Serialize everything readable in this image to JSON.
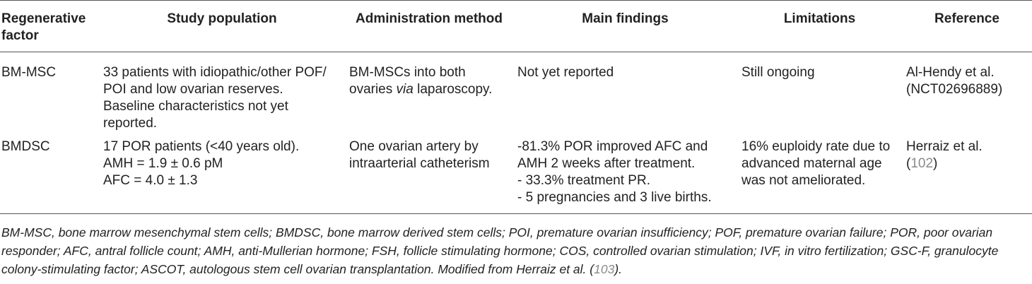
{
  "headers": {
    "factor": "Regenerative factor",
    "population": "Study population",
    "method": "Administration method",
    "findings": "Main findings",
    "limitations": "Limitations",
    "reference": "Reference"
  },
  "rows": [
    {
      "factor": "BM-MSC",
      "population": [
        "33 patients with idiopathic/other POF/",
        "POI and low ovarian reserves.",
        "Baseline characteristics not yet",
        "reported."
      ],
      "method": {
        "line1": "BM-MSCs into both",
        "line2_pre": "ovaries ",
        "line2_italic": "via",
        "line2_post": " laparoscopy."
      },
      "findings": [
        "Not yet reported"
      ],
      "limitations": [
        "Still ongoing"
      ],
      "reference": {
        "line1": "Al-Hendy et al.",
        "line2": "(NCT02696889)"
      }
    },
    {
      "factor": "BMDSC",
      "population": [
        "17 POR patients (<40 years old).",
        "AMH = 1.9 ± 0.6 pM",
        "AFC = 4.0 ± 1.3"
      ],
      "method": {
        "line1": "One ovarian artery by",
        "line2": "intraarterial catheterism"
      },
      "findings": [
        "-81.3% POR improved AFC and",
        "AMH 2 weeks after treatment.",
        "- 33.3% treatment PR.",
        "- 5 pregnancies and 3 live births."
      ],
      "limitations": [
        "16% euploidy rate due to",
        "advanced maternal age",
        "was not ameliorated."
      ],
      "reference": {
        "line1": "Herraiz et al.",
        "cite_open": "(",
        "cite": "102",
        "cite_close": ")"
      }
    }
  ],
  "footnote": {
    "text": "BM-MSC, bone marrow mesenchymal stem cells; BMDSC, bone marrow derived stem cells; POI, premature ovarian insufficiency; POF, premature ovarian failure; POR, poor ovarian responder; AFC, antral follicle count; AMH, anti-Mullerian hormone; FSH, follicle stimulating hormone; COS, controlled ovarian stimulation; IVF, in vitro fertilization; GSC-F, granulocyte colony-stimulating factor; ASCOT, autologous stem cell ovarian transplantation. Modified from Herraiz et al. (",
    "cite": "103",
    "close": ")."
  },
  "colors": {
    "text": "#222222",
    "rule": "#555555",
    "citation": "#8a8a8a"
  }
}
